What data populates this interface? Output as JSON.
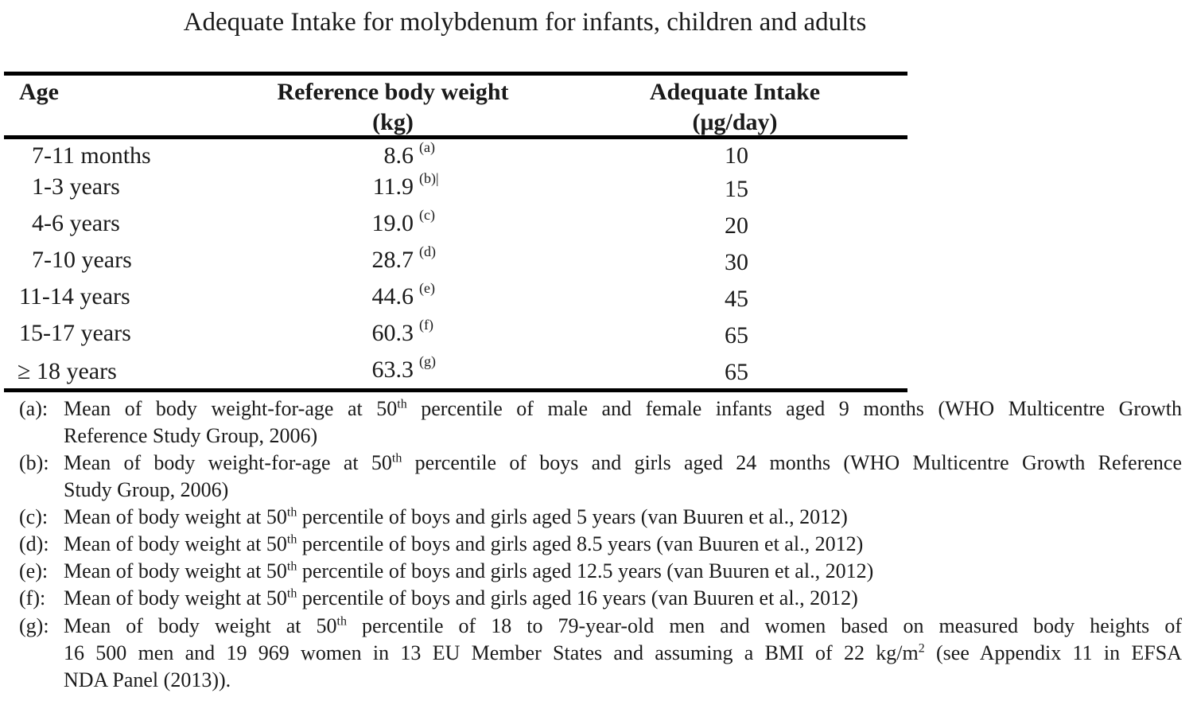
{
  "title": "Adequate Intake for molybdenum for infants, children and adults",
  "headers": {
    "age": "Age",
    "weight_line1": "Reference body weight",
    "weight_line2": "(kg)",
    "ai_line1": "Adequate Intake",
    "ai_line2": "(μg/day)"
  },
  "rows": [
    {
      "age": "7-11 months",
      "weight": "8.6",
      "note": "(a)",
      "ai": "10"
    },
    {
      "age": "1-3   years",
      "weight": "11.9",
      "note": "(b)|",
      "ai": "15"
    },
    {
      "age": "4-6   years",
      "weight": "19.0",
      "note": "(c)",
      "ai": "20"
    },
    {
      "age": "7-10 years",
      "weight": "28.7",
      "note": "(d)",
      "ai": "30"
    },
    {
      "age": "11-14 years",
      "weight": "44.6",
      "note": "(e)",
      "ai": "45"
    },
    {
      "age": "15-17 years",
      "weight": "60.3",
      "note": "(f)",
      "ai": "65"
    },
    {
      "age": "≥ 18 years",
      "weight": "63.3",
      "note": "(g)",
      "ai": "65"
    }
  ],
  "footnotes": {
    "a": {
      "label": "(a):",
      "pre": "Mean of body weight-for-age at 50",
      "sup": "th",
      "post1": " percentile of male and female infants aged 9 months (WHO Multicentre Growth",
      "line2": "Reference Study Group, 2006)"
    },
    "b": {
      "label": "(b):",
      "pre": "Mean of body weight-for-age at 50",
      "sup": "th",
      "post1": " percentile of boys and girls aged 24 months (WHO Multicentre Growth Reference",
      "line2": "Study Group, 2006)"
    },
    "c": {
      "label": "(c):",
      "pre": "Mean of body weight at 50",
      "sup": "th",
      "post1": " percentile of boys and girls aged 5 years (van Buuren et al., 2012)"
    },
    "d": {
      "label": "(d):",
      "pre": "Mean of body weight at 50",
      "sup": "th",
      "post1": " percentile of boys and girls aged 8.5 years (van Buuren et al., 2012)"
    },
    "e": {
      "label": "(e):",
      "pre": "Mean of body weight at 50",
      "sup": "th",
      "post1": " percentile of boys and girls aged 12.5 years (van Buuren et al., 2012)"
    },
    "f": {
      "label": "(f):",
      "pre": "Mean of body weight at 50",
      "sup": "th",
      "post1": " percentile of boys and girls aged 16 years (van Buuren et al., 2012)"
    },
    "g": {
      "label": "(g):",
      "pre": "Mean of body weight at 50",
      "sup": "th",
      "post1": " percentile of 18 to 79-year-old men and women based on measured body heights of",
      "line2_pre": "16 500 men and 19 969 women in 13 EU Member States and assuming a BMI of 22 kg/m",
      "line2_sup": "2",
      "line2_post": " (see Appendix 11 in EFSA",
      "line3": "NDA Panel (2013))."
    }
  }
}
